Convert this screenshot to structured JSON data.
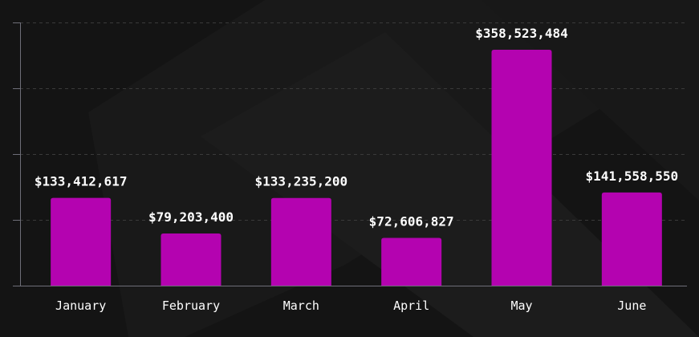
{
  "colors": {
    "background": "#141414",
    "bar": "#b403b0",
    "text": "#ffffff",
    "axis": "#6e6e78",
    "grid": "#3a3a3a"
  },
  "chart_data": {
    "type": "bar",
    "title": "",
    "xlabel": "",
    "ylabel": "",
    "categories": [
      "January",
      "February",
      "March",
      "April",
      "May",
      "June"
    ],
    "values": [
      133412617,
      79203400,
      133235200,
      72606827,
      358523484,
      141558550
    ],
    "value_labels": [
      "$133,412,617",
      "$79,203,400",
      "$133,235,200",
      "$72,606,827",
      "$358,523,484",
      "$141,558,550"
    ],
    "ylim": [
      0,
      400000000
    ],
    "y_ticks": [
      0,
      100000000,
      200000000,
      300000000,
      400000000
    ],
    "y_tick_labels_shown": false,
    "grid": true,
    "legend": "none"
  }
}
